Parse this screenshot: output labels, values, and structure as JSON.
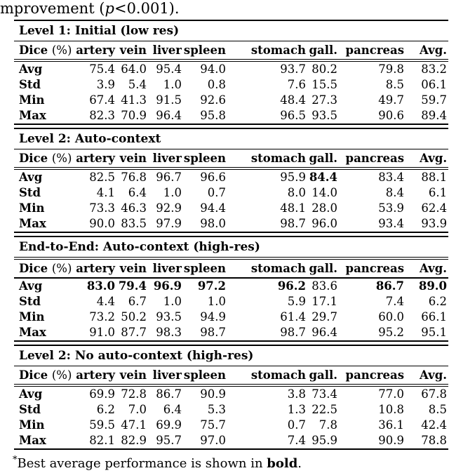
{
  "caption": {
    "text_before_p": "mprovement (",
    "p_symbol": "p",
    "text_after_p": "<0.001)."
  },
  "table": {
    "corner_label": {
      "bold": "Dice",
      "normal": "(%)"
    },
    "columns": [
      "artery",
      "vein",
      "liver",
      "spleen",
      "stomach",
      "gall.",
      "pancreas",
      "Avg."
    ],
    "row_labels": [
      "Avg",
      "Std",
      "Min",
      "Max"
    ],
    "sections": [
      {
        "title": "Level 1: Initial (low res)",
        "rows": [
          {
            "label": "Avg",
            "values": [
              "75.4",
              "64.0",
              "95.4",
              "94.0",
              "93.7",
              "80.2",
              "79.8",
              "83.2"
            ]
          },
          {
            "label": "Std",
            "values": [
              "3.9",
              "5.4",
              "1.0",
              "0.8",
              "7.6",
              "15.5",
              "8.5",
              "06.1"
            ]
          },
          {
            "label": "Min",
            "values": [
              "67.4",
              "41.3",
              "91.5",
              "92.6",
              "48.4",
              "27.3",
              "49.7",
              "59.7"
            ]
          },
          {
            "label": "Max",
            "values": [
              "82.3",
              "70.9",
              "96.4",
              "95.8",
              "96.5",
              "93.5",
              "90.6",
              "89.4"
            ]
          }
        ]
      },
      {
        "title": "Level 2: Auto-context",
        "rows": [
          {
            "label": "Avg",
            "values": [
              "82.5",
              "76.8",
              "96.7",
              "96.6",
              "95.9",
              "84.4",
              "83.4",
              "88.1"
            ],
            "bold": [
              0,
              0,
              0,
              0,
              0,
              1,
              0,
              0
            ]
          },
          {
            "label": "Std",
            "values": [
              "4.1",
              "6.4",
              "1.0",
              "0.7",
              "8.0",
              "14.0",
              "8.4",
              "6.1"
            ]
          },
          {
            "label": "Min",
            "values": [
              "73.3",
              "46.3",
              "92.9",
              "94.4",
              "48.1",
              "28.0",
              "53.9",
              "62.4"
            ]
          },
          {
            "label": "Max",
            "values": [
              "90.0",
              "83.5",
              "97.9",
              "98.0",
              "98.7",
              "96.0",
              "93.4",
              "93.9"
            ]
          }
        ]
      },
      {
        "title": "End-to-End: Auto-context (high-res)",
        "rows": [
          {
            "label": "Avg",
            "values": [
              "83.0",
              "79.4",
              "96.9",
              "97.2",
              "96.2",
              "83.6",
              "86.7",
              "89.0"
            ],
            "bold": [
              1,
              1,
              1,
              1,
              1,
              0,
              1,
              1
            ]
          },
          {
            "label": "Std",
            "values": [
              "4.4",
              "6.7",
              "1.0",
              "1.0",
              "5.9",
              "17.1",
              "7.4",
              "6.2"
            ]
          },
          {
            "label": "Min",
            "values": [
              "73.2",
              "50.2",
              "93.5",
              "94.9",
              "61.4",
              "29.7",
              "60.0",
              "66.1"
            ]
          },
          {
            "label": "Max",
            "values": [
              "91.0",
              "87.7",
              "98.3",
              "98.7",
              "98.7",
              "96.4",
              "95.2",
              "95.1"
            ]
          }
        ]
      },
      {
        "title": "Level 2: No auto-context (high-res)",
        "rows": [
          {
            "label": "Avg",
            "values": [
              "69.9",
              "72.8",
              "86.7",
              "90.9",
              "3.8",
              "73.4",
              "77.0",
              "67.8"
            ]
          },
          {
            "label": "Std",
            "values": [
              "6.2",
              "7.0",
              "6.4",
              "5.3",
              "1.3",
              "22.5",
              "10.8",
              "8.5"
            ]
          },
          {
            "label": "Min",
            "values": [
              "59.5",
              "47.1",
              "69.9",
              "75.7",
              "0.7",
              "7.8",
              "36.1",
              "42.4"
            ]
          },
          {
            "label": "Max",
            "values": [
              "82.1",
              "82.9",
              "95.7",
              "97.0",
              "7.4",
              "95.9",
              "90.9",
              "78.8"
            ]
          }
        ]
      }
    ]
  },
  "footnote": {
    "marker": "*",
    "text_before_bold": "Best average performance is shown in ",
    "bold_word": "bold",
    "text_after_bold": "."
  },
  "colors": {
    "text": "#000000",
    "background": "#ffffff",
    "rule": "#000000"
  }
}
